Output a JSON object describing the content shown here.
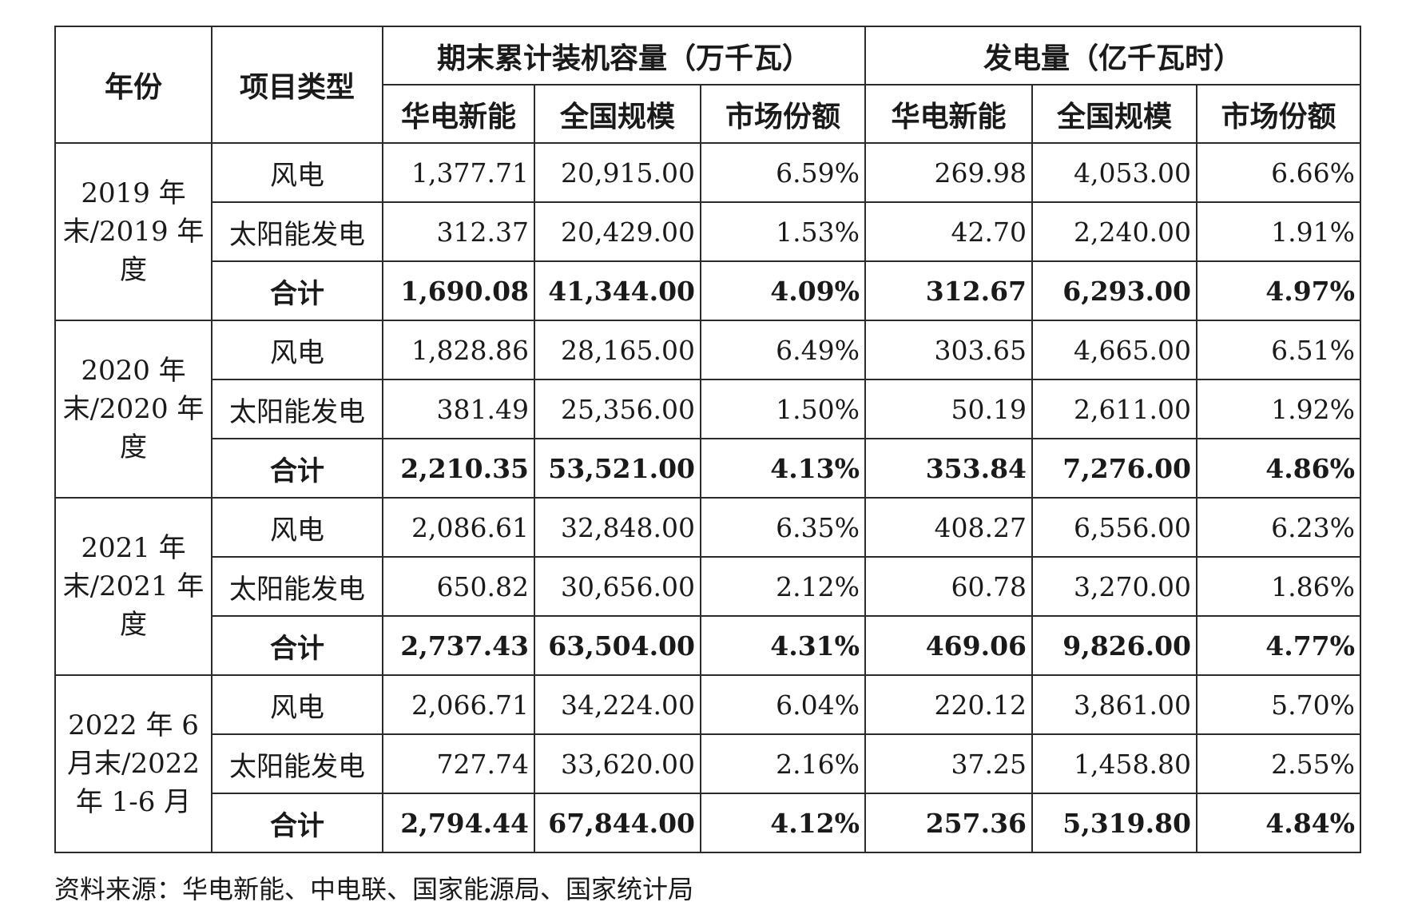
{
  "headers": {
    "year": "年份",
    "type": "项目类型",
    "capacity_group": "期末累计装机容量（万千瓦）",
    "generation_group": "发电量（亿千瓦时）",
    "sub": [
      "华电新能",
      "全国规模",
      "市场份额",
      "华电新能",
      "全国规模",
      "市场份额"
    ]
  },
  "groups": [
    {
      "year_label": "2019 年末/2019 年度",
      "rows": [
        {
          "type": "风电",
          "values": [
            "1,377.71",
            "20,915.00",
            "6.59%",
            "269.98",
            "4,053.00",
            "6.66%"
          ]
        },
        {
          "type": "太阳能发电",
          "values": [
            "312.37",
            "20,429.00",
            "1.53%",
            "42.70",
            "2,240.00",
            "1.91%"
          ]
        },
        {
          "type": "合计",
          "values": [
            "1,690.08",
            "41,344.00",
            "4.09%",
            "312.67",
            "6,293.00",
            "4.97%"
          ]
        }
      ]
    },
    {
      "year_label": "2020 年末/2020 年度",
      "rows": [
        {
          "type": "风电",
          "values": [
            "1,828.86",
            "28,165.00",
            "6.49%",
            "303.65",
            "4,665.00",
            "6.51%"
          ]
        },
        {
          "type": "太阳能发电",
          "values": [
            "381.49",
            "25,356.00",
            "1.50%",
            "50.19",
            "2,611.00",
            "1.92%"
          ]
        },
        {
          "type": "合计",
          "values": [
            "2,210.35",
            "53,521.00",
            "4.13%",
            "353.84",
            "7,276.00",
            "4.86%"
          ]
        }
      ]
    },
    {
      "year_label": "2021 年末/2021 年度",
      "rows": [
        {
          "type": "风电",
          "values": [
            "2,086.61",
            "32,848.00",
            "6.35%",
            "408.27",
            "6,556.00",
            "6.23%"
          ]
        },
        {
          "type": "太阳能发电",
          "values": [
            "650.82",
            "30,656.00",
            "2.12%",
            "60.78",
            "3,270.00",
            "1.86%"
          ]
        },
        {
          "type": "合计",
          "values": [
            "2,737.43",
            "63,504.00",
            "4.31%",
            "469.06",
            "9,826.00",
            "4.77%"
          ]
        }
      ]
    },
    {
      "year_label": "2022 年 6 月末/2022 年 1-6 月",
      "rows": [
        {
          "type": "风电",
          "values": [
            "2,066.71",
            "34,224.00",
            "6.04%",
            "220.12",
            "3,861.00",
            "5.70%"
          ]
        },
        {
          "type": "太阳能发电",
          "values": [
            "727.74",
            "33,620.00",
            "2.16%",
            "37.25",
            "1,458.80",
            "2.55%"
          ]
        },
        {
          "type": "合计",
          "values": [
            "2,794.44",
            "67,844.00",
            "4.12%",
            "257.36",
            "5,319.80",
            "4.84%"
          ]
        }
      ]
    }
  ],
  "footnote": "资料来源：华电新能、中电联、国家能源局、国家统计局"
}
